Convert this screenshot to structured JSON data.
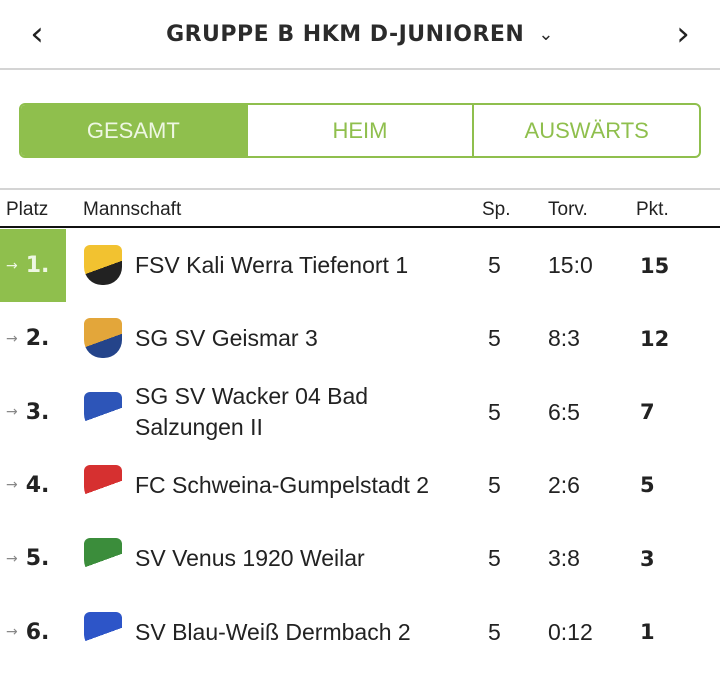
{
  "header": {
    "title": "GRUPPE B HKM D-JUNIOREN",
    "prev": "‹",
    "next": "›",
    "dropdown": "⌄"
  },
  "tabs": [
    {
      "label": "GESAMT",
      "active": true
    },
    {
      "label": "HEIM"
    },
    {
      "label": "AUSWÄRTS"
    }
  ],
  "table": {
    "columns": {
      "platz": "Platz",
      "team": "Mannschaft",
      "sp": "Sp.",
      "torv": "Torv.",
      "pkt": "Pkt."
    },
    "trend_icon": "→",
    "rows": [
      {
        "rank": "1.",
        "team": "FSV Kali Werra Tiefenort 1",
        "sp": "5",
        "torv": "15:0",
        "pkt": "15",
        "logo_colors": [
          "#f2c230",
          "#222"
        ]
      },
      {
        "rank": "2.",
        "team": "SG SV Geismar 3",
        "sp": "5",
        "torv": "8:3",
        "pkt": "12",
        "logo_colors": [
          "#e3a63a",
          "#24448a"
        ]
      },
      {
        "rank": "3.",
        "team": "SG SV Wacker 04 Bad Salzungen II",
        "sp": "5",
        "torv": "6:5",
        "pkt": "7",
        "logo_colors": [
          "#2d55b8",
          "#fff"
        ]
      },
      {
        "rank": "4.",
        "team": "FC Schweina-Gumpelstadt 2",
        "sp": "5",
        "torv": "2:6",
        "pkt": "5",
        "logo_colors": [
          "#d63030",
          "#fff"
        ]
      },
      {
        "rank": "5.",
        "team": "SV Venus 1920 Weilar",
        "sp": "5",
        "torv": "3:8",
        "pkt": "3",
        "logo_colors": [
          "#3b8d3b",
          "#fff"
        ]
      },
      {
        "rank": "6.",
        "team": "SV Blau-Weiß Dermbach 2",
        "sp": "5",
        "torv": "0:12",
        "pkt": "1",
        "logo_colors": [
          "#2d55c8",
          "#fff"
        ]
      }
    ]
  },
  "colors": {
    "accent": "#8fbf4d"
  }
}
